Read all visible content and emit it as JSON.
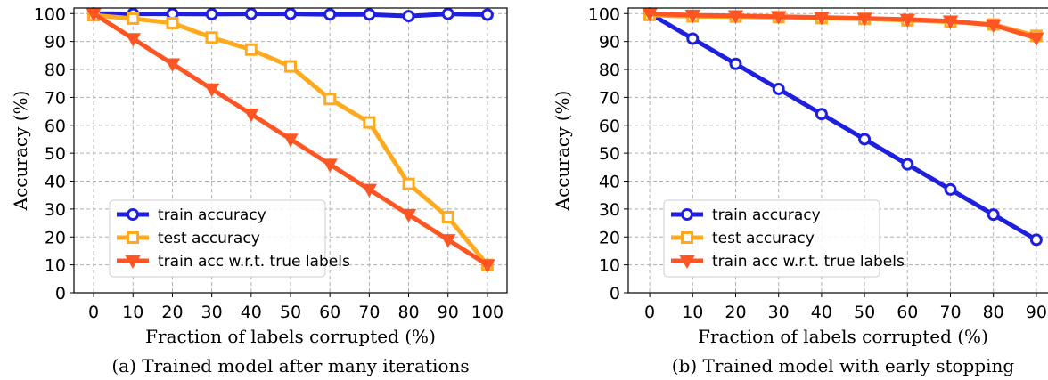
{
  "chart_data": [
    {
      "type": "line",
      "caption": "(a) Trained model after many iterations",
      "xlabel": "Fraction of labels corrupted (%)",
      "ylabel": "Accuracy (%)",
      "x": [
        0,
        10,
        20,
        30,
        40,
        50,
        60,
        70,
        80,
        90,
        100
      ],
      "xticks": [
        "0",
        "10",
        "20",
        "30",
        "40",
        "50",
        "60",
        "70",
        "80",
        "90",
        "100"
      ],
      "yticks": [
        "0",
        "10",
        "20",
        "30",
        "40",
        "50",
        "60",
        "70",
        "80",
        "90",
        "100"
      ],
      "xlim": [
        -5,
        105
      ],
      "ylim": [
        0,
        102
      ],
      "grid": true,
      "legend_position": "lower-left",
      "series": [
        {
          "name": "train accuracy",
          "color": "#1f1fe0",
          "marker": "circle",
          "values": [
            100,
            99.9,
            99.9,
            99.8,
            99.9,
            99.9,
            99.7,
            99.7,
            99.1,
            99.9,
            99.6
          ]
        },
        {
          "name": "test accuracy",
          "color": "#ffaa1e",
          "marker": "square",
          "values": [
            99.4,
            98.2,
            96.6,
            91.4,
            87.1,
            81.1,
            69.4,
            61.0,
            39.0,
            27.1,
            10.0
          ]
        },
        {
          "name": "train acc w.r.t. true labels",
          "color": "#ff5522",
          "marker": "triangle-down",
          "values": [
            100,
            91,
            82,
            73,
            64,
            55,
            46,
            37,
            28,
            19,
            10
          ]
        }
      ]
    },
    {
      "type": "line",
      "caption": "(b) Trained model with early stopping",
      "xlabel": "Fraction of labels corrupted (%)",
      "ylabel": "Accuracy (%)",
      "x": [
        0,
        10,
        20,
        30,
        40,
        50,
        60,
        70,
        80,
        90
      ],
      "xticks": [
        "0",
        "10",
        "20",
        "30",
        "40",
        "50",
        "60",
        "70",
        "80",
        "90"
      ],
      "yticks": [
        "0",
        "10",
        "20",
        "30",
        "40",
        "50",
        "60",
        "70",
        "80",
        "90",
        "100"
      ],
      "xlim": [
        -5,
        95
      ],
      "ylim": [
        0,
        102
      ],
      "grid": true,
      "legend_position": "lower-left",
      "series": [
        {
          "name": "train accuracy",
          "color": "#1f1fe0",
          "marker": "circle",
          "values": [
            100,
            91,
            82,
            73,
            64,
            55,
            46,
            37,
            28,
            19
          ]
        },
        {
          "name": "test accuracy",
          "color": "#ffaa1e",
          "marker": "square",
          "values": [
            99.5,
            99.0,
            98.9,
            98.7,
            98.4,
            98.1,
            97.6,
            97.0,
            96.1,
            92.0
          ]
        },
        {
          "name": "train acc w.r.t. true labels",
          "color": "#ff5522",
          "marker": "triangle-down",
          "values": [
            100,
            99.4,
            99.2,
            98.9,
            98.6,
            98.3,
            97.9,
            97.3,
            95.9,
            91.2
          ]
        }
      ]
    }
  ]
}
